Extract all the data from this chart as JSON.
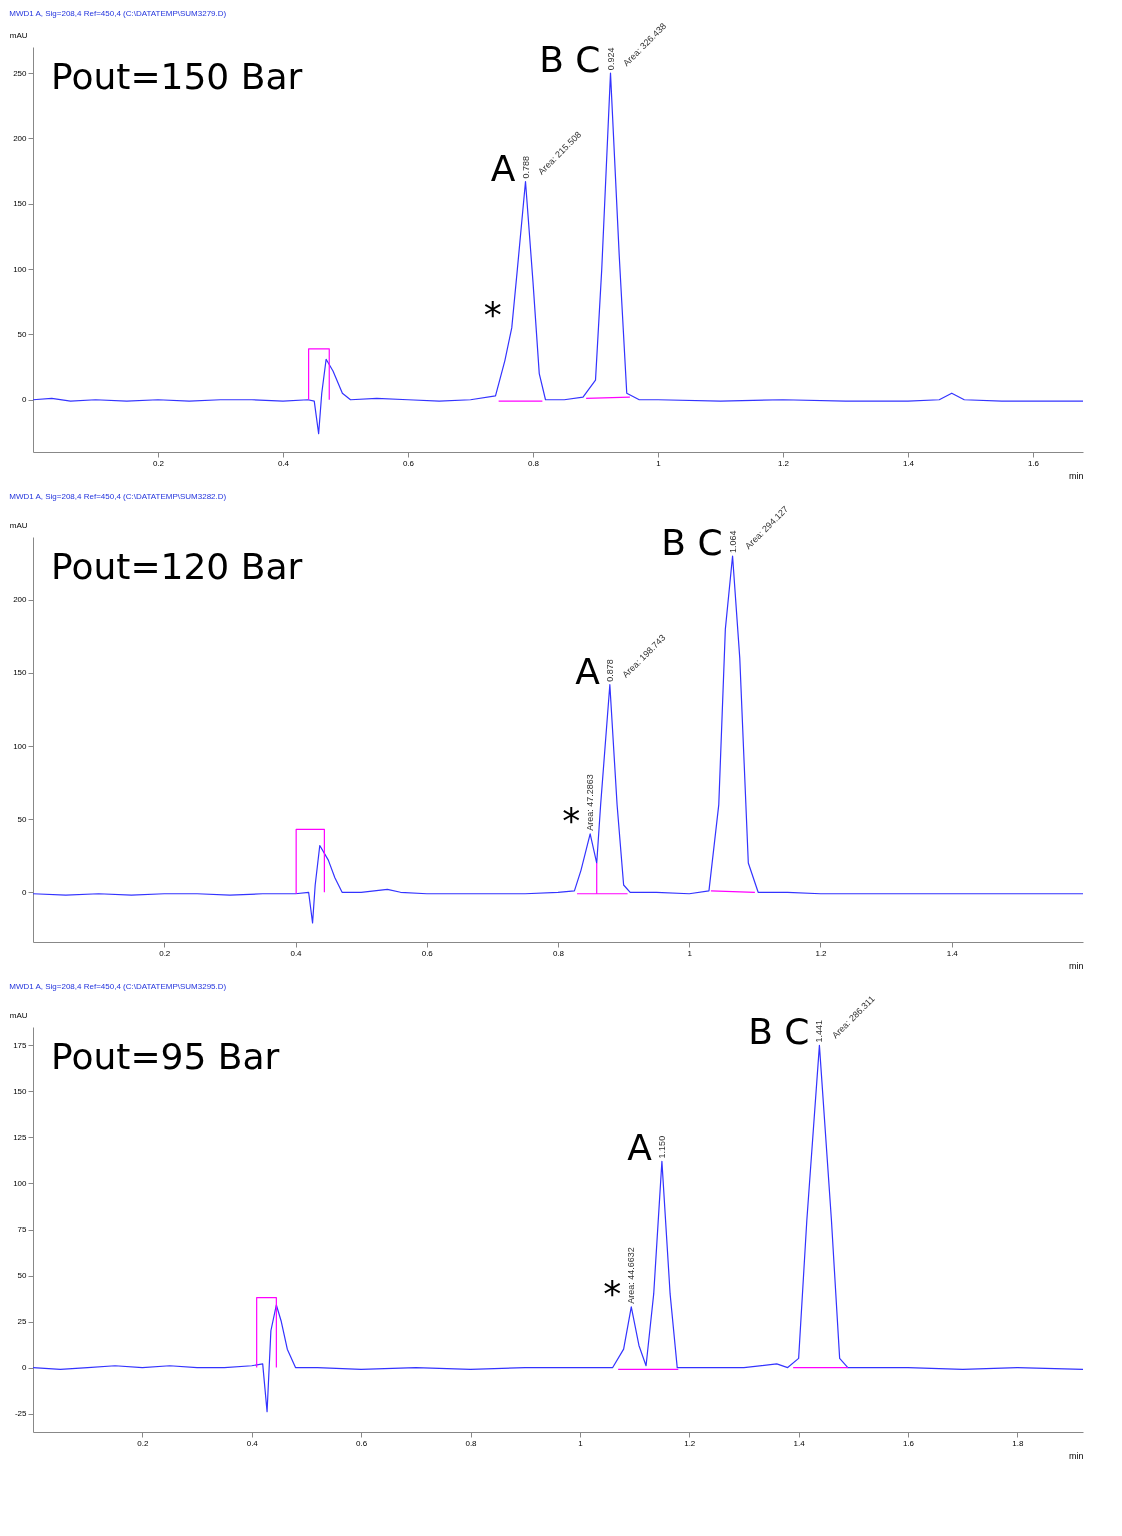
{
  "chart_data": [
    {
      "type": "line",
      "title": "MWD1 A, Sig=208,4 Ref=450,4 (C:\\DATATEMP\\SUM3279.D)",
      "xlabel": "min",
      "ylabel": "mAU",
      "xlim": [
        0,
        1.68
      ],
      "ylim": [
        -40,
        270
      ],
      "xticks": [
        0.2,
        0.4,
        0.6,
        0.8,
        1,
        1.2,
        1.4,
        1.6
      ],
      "yticks": [
        0,
        50,
        100,
        150,
        200,
        250
      ],
      "series": [
        {
          "color": "#3333ff",
          "x": [
            0,
            0.03,
            0.06,
            0.1,
            0.15,
            0.2,
            0.25,
            0.3,
            0.35,
            0.4,
            0.44,
            0.45,
            0.457,
            0.462,
            0.469,
            0.48,
            0.495,
            0.508,
            0.55,
            0.6,
            0.65,
            0.7,
            0.74,
            0.755,
            0.766,
            0.775,
            0.788,
            0.8,
            0.81,
            0.82,
            0.85,
            0.88,
            0.9,
            0.91,
            0.924,
            0.938,
            0.95,
            0.97,
            1,
            1.1,
            1.2,
            1.3,
            1.4,
            1.45,
            1.47,
            1.49,
            1.55,
            1.6,
            1.68
          ],
          "values": [
            0,
            1,
            -1,
            0,
            -1,
            0,
            -1,
            0,
            0,
            -1,
            0,
            -1,
            -26,
            5,
            31,
            22,
            5,
            0,
            1,
            0,
            -1,
            0,
            3,
            30,
            55,
            100,
            167,
            90,
            20,
            0,
            0,
            2,
            15,
            100,
            250,
            110,
            5,
            0,
            0,
            -1,
            0,
            -1,
            -1,
            0,
            5,
            0,
            -1,
            -1,
            -1
          ]
        },
        {
          "color": "#ff00ff",
          "x": [
            0.441,
            0.441,
            0.474,
            0.474
          ],
          "values": [
            0,
            39,
            39,
            0
          ]
        },
        {
          "color": "#ff00ff",
          "x": [
            0.745,
            0.815
          ],
          "values": [
            -1,
            -1
          ]
        },
        {
          "color": "#ff00ff",
          "x": [
            0.885,
            0.955
          ],
          "values": [
            1,
            2
          ]
        }
      ],
      "annotations": [
        "Pout=150 Bar",
        {
          "text": "A",
          "x": 0.788,
          "y": 167
        },
        {
          "text": "B C",
          "x": 0.924,
          "y": 250
        },
        {
          "text": "*",
          "x": 0.766,
          "y": 55
        },
        {
          "text": "0.788",
          "x": 0.788,
          "y": 167
        },
        {
          "text": "Area: 215.508",
          "x": 0.788,
          "y": 167
        },
        {
          "text": "0.924",
          "x": 0.924,
          "y": 250
        },
        {
          "text": "Area: 326.438",
          "x": 0.924,
          "y": 250
        }
      ]
    },
    {
      "type": "line",
      "title": "MWD1 A, Sig=208,4 Ref=450,4 (C:\\DATATEMP\\SUM3282.D)",
      "xlabel": "min",
      "ylabel": "mAU",
      "xlim": [
        0,
        1.6
      ],
      "ylim": [
        -34,
        243
      ],
      "xticks": [
        0.2,
        0.4,
        0.6,
        0.8,
        1,
        1.2,
        1.4
      ],
      "yticks": [
        0,
        50,
        100,
        150,
        200
      ],
      "series": [
        {
          "color": "#3333ff",
          "x": [
            0,
            0.05,
            0.1,
            0.15,
            0.2,
            0.25,
            0.3,
            0.35,
            0.4,
            0.42,
            0.426,
            0.43,
            0.437,
            0.45,
            0.46,
            0.471,
            0.5,
            0.54,
            0.56,
            0.6,
            0.65,
            0.7,
            0.75,
            0.8,
            0.825,
            0.835,
            0.849,
            0.859,
            0.865,
            0.879,
            0.89,
            0.9,
            0.91,
            0.95,
            1,
            1.03,
            1.045,
            1.055,
            1.066,
            1.077,
            1.09,
            1.105,
            1.15,
            1.2,
            1.3,
            1.4,
            1.5,
            1.6
          ],
          "values": [
            -1,
            -2,
            -1,
            -2,
            -1,
            -1,
            -2,
            -1,
            -1,
            0,
            -21,
            5,
            32,
            22,
            10,
            0,
            0,
            2,
            0,
            -1,
            -1,
            -1,
            -1,
            0,
            1,
            15,
            40,
            20,
            60,
            142,
            60,
            5,
            0,
            0,
            -1,
            1,
            60,
            180,
            230,
            160,
            20,
            0,
            0,
            -1,
            -1,
            -1,
            -1,
            -1
          ]
        },
        {
          "color": "#ff00ff",
          "x": [
            0.401,
            0.401,
            0.444,
            0.444
          ],
          "values": [
            -1,
            43,
            43,
            0
          ]
        },
        {
          "color": "#ff00ff",
          "x": [
            0.829,
            0.906
          ],
          "values": [
            -1,
            -1
          ]
        },
        {
          "color": "#ff00ff",
          "x": [
            0.859,
            0.859
          ],
          "values": [
            -1,
            20
          ]
        },
        {
          "color": "#ff00ff",
          "x": [
            1.033,
            1.1
          ],
          "values": [
            1,
            0
          ]
        }
      ],
      "annotations": [
        "Pout=120 Bar",
        {
          "text": "A",
          "x": 0.879,
          "y": 142
        },
        {
          "text": "B C",
          "x": 1.066,
          "y": 230
        },
        {
          "text": "*",
          "x": 0.849,
          "y": 40
        },
        {
          "text": "0.878",
          "x": 0.879,
          "y": 142
        },
        {
          "text": "Area: 198.743",
          "x": 0.879,
          "y": 142
        },
        {
          "text": "Area: 47.2863",
          "x": 0.849,
          "y": 40
        },
        {
          "text": "1.064",
          "x": 1.066,
          "y": 230
        },
        {
          "text": "Area: 294.127",
          "x": 1.066,
          "y": 230
        }
      ]
    },
    {
      "type": "line",
      "title": "MWD1 A, Sig=208,4 Ref=450,4 (C:\\DATATEMP\\SUM3295.D)",
      "xlabel": "min",
      "ylabel": "mAU",
      "xlim": [
        0,
        1.92
      ],
      "ylim": [
        -35,
        185
      ],
      "xticks": [
        0.2,
        0.4,
        0.6,
        0.8,
        1,
        1.2,
        1.4,
        1.6,
        1.8
      ],
      "yticks": [
        -25,
        0,
        25,
        50,
        75,
        100,
        125,
        150,
        175
      ],
      "series": [
        {
          "color": "#3333ff",
          "x": [
            0,
            0.05,
            0.1,
            0.15,
            0.2,
            0.25,
            0.3,
            0.35,
            0.4,
            0.42,
            0.428,
            0.435,
            0.445,
            0.454,
            0.465,
            0.48,
            0.52,
            0.6,
            0.7,
            0.8,
            0.9,
            1,
            1.06,
            1.08,
            1.094,
            1.108,
            1.121,
            1.135,
            1.15,
            1.165,
            1.178,
            1.25,
            1.3,
            1.36,
            1.38,
            1.4,
            1.415,
            1.438,
            1.46,
            1.475,
            1.49,
            1.55,
            1.6,
            1.7,
            1.8,
            1.92
          ],
          "values": [
            0,
            -1,
            0,
            1,
            0,
            1,
            0,
            0,
            1,
            2,
            -24,
            20,
            34,
            25,
            10,
            0,
            0,
            -1,
            0,
            -1,
            0,
            0,
            0,
            10,
            33,
            12,
            1,
            40,
            112,
            40,
            0,
            0,
            0,
            2,
            0,
            5,
            80,
            175,
            80,
            5,
            0,
            0,
            0,
            -1,
            0,
            -1
          ]
        },
        {
          "color": "#ff00ff",
          "x": [
            0.409,
            0.409,
            0.445,
            0.445
          ],
          "values": [
            0,
            38,
            38,
            0
          ]
        },
        {
          "color": "#ff00ff",
          "x": [
            1.07,
            1.18
          ],
          "values": [
            -1,
            -1
          ]
        },
        {
          "color": "#ff00ff",
          "x": [
            1.39,
            1.49
          ],
          "values": [
            0,
            0
          ]
        }
      ],
      "annotations": [
        "Pout=95 Bar",
        {
          "text": "A",
          "x": 1.15,
          "y": 112
        },
        {
          "text": "B C",
          "x": 1.438,
          "y": 175
        },
        {
          "text": "*",
          "x": 1.094,
          "y": 33
        },
        {
          "text": "Area: 44.6632",
          "x": 1.094,
          "y": 33
        },
        {
          "text": "1.150",
          "x": 1.15,
          "y": 112
        },
        {
          "text": "1.441",
          "x": 1.438,
          "y": 175
        },
        {
          "text": "Area: 286.311",
          "x": 1.438,
          "y": 175
        }
      ]
    }
  ]
}
